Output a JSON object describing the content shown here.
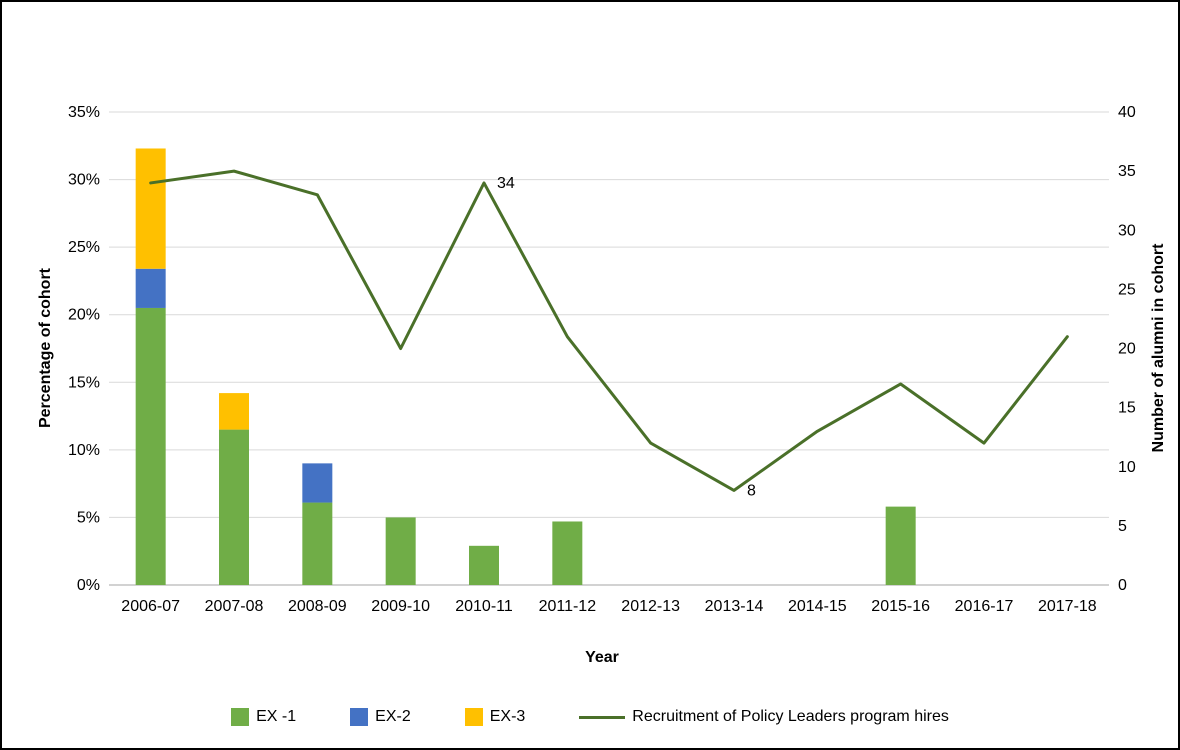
{
  "chart_data": {
    "type": "combo-bar-line",
    "title": "",
    "categories": [
      "2006-07",
      "2007-08",
      "2008-09",
      "2009-10",
      "2010-11",
      "2011-12",
      "2012-13",
      "2013-14",
      "2014-15",
      "2015-16",
      "2016-17",
      "2017-18"
    ],
    "bar_series": [
      {
        "name": "EX -1",
        "color": "#70AD47",
        "values": [
          20.5,
          11.5,
          6.1,
          5.0,
          2.9,
          4.7,
          0,
          0,
          0,
          5.8,
          0,
          0
        ]
      },
      {
        "name": "EX-2",
        "color": "#4472C4",
        "values": [
          2.9,
          0,
          2.9,
          0,
          0,
          0,
          0,
          0,
          0,
          0,
          0,
          0
        ]
      },
      {
        "name": "EX-3",
        "color": "#FFC000",
        "values": [
          8.9,
          2.7,
          0,
          0,
          0,
          0,
          0,
          0,
          0,
          0,
          0,
          0
        ]
      }
    ],
    "line_series": {
      "name": "Recruitment of Policy Leaders program hires",
      "color": "#4A7029",
      "values": [
        34,
        35,
        33,
        20,
        34,
        21,
        12,
        8,
        13,
        17,
        12,
        21
      ]
    },
    "left_axis": {
      "label": "Percentage of cohort",
      "min": 0,
      "max": 35,
      "step": 5,
      "tick_suffix": "%"
    },
    "right_axis": {
      "label": "Number of alumni in cohort",
      "min": 0,
      "max": 40,
      "step": 5,
      "tick_suffix": ""
    },
    "x_axis": {
      "label": "Year"
    },
    "data_labels": [
      {
        "category_index": 4,
        "text": "34"
      },
      {
        "category_index": 7,
        "text": "8"
      }
    ],
    "grid": true,
    "legend_position": "bottom",
    "gridline_color": "#D9D9D9",
    "baseline_color": "#A6A6A6",
    "text_color": "#000000"
  }
}
